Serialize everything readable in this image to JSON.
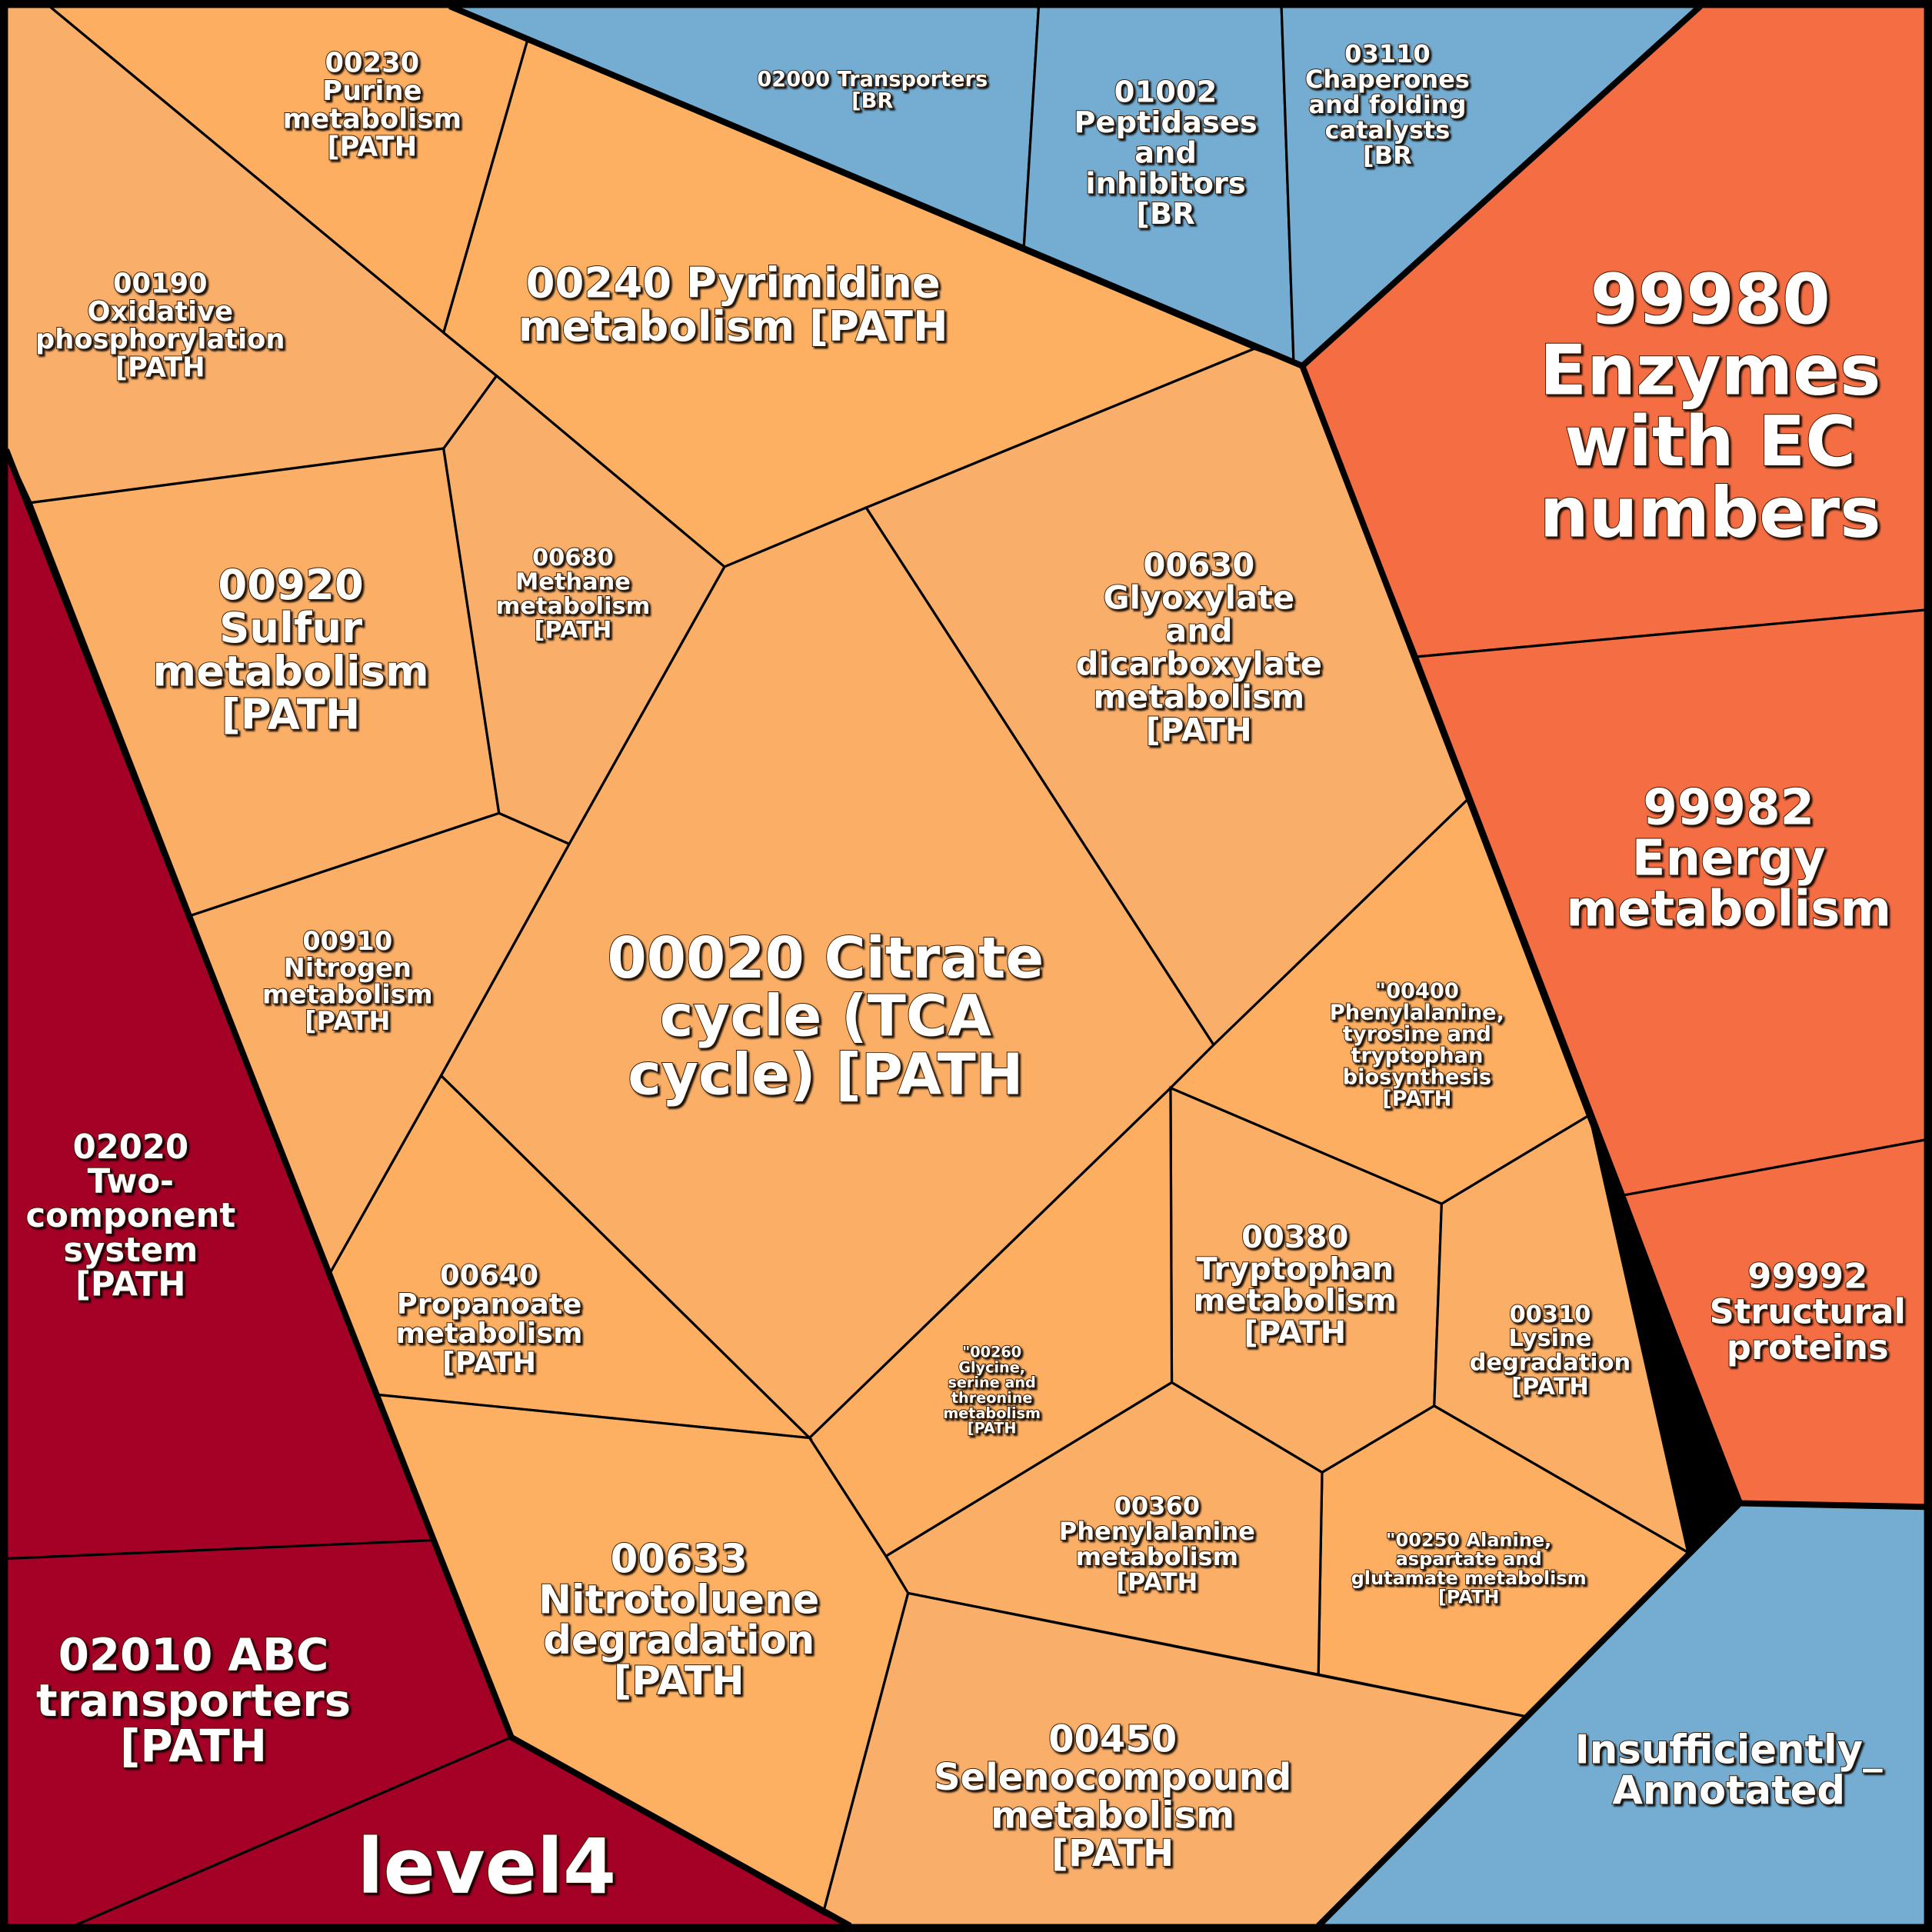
{
  "colors": {
    "orange": "#fdae61",
    "orange_alt": "#f9ae6a",
    "red": "#a50026",
    "orange_red": "#f46d43",
    "blue": "#74add1"
  },
  "chart_data": {
    "type": "voronoi-treemap",
    "title": "",
    "groups": [
      {
        "name": "level4",
        "color": "#a50026"
      },
      {
        "name": "BR",
        "color": "#74add1"
      },
      {
        "name": "99980 Enzymes with EC numbers",
        "color": "#f46d43"
      },
      {
        "name": "PATH",
        "color": "#fdae61"
      }
    ]
  },
  "cells": [
    {
      "lines": [
        "00230",
        "Purine",
        "metabolism",
        "[PATH"
      ]
    },
    {
      "lines": [
        "00190",
        "Oxidative",
        "phosphorylation",
        "[PATH"
      ]
    },
    {
      "lines": [
        "00240 Pyrimidine",
        "metabolism [PATH"
      ]
    },
    {
      "lines": [
        "02000 Transporters",
        "[BR"
      ]
    },
    {
      "lines": [
        "01002",
        "Peptidases",
        "and",
        "inhibitors",
        "[BR"
      ]
    },
    {
      "lines": [
        "03110",
        "Chaperones",
        "and folding",
        "catalysts",
        "[BR"
      ]
    },
    {
      "lines": [
        "99980",
        "Enzymes",
        "with EC",
        "numbers"
      ]
    },
    {
      "lines": [
        "99982",
        "Energy",
        "metabolism"
      ]
    },
    {
      "lines": [
        "99992",
        "Structural",
        "proteins"
      ]
    },
    {
      "lines": [
        "Insufficiently_",
        "Annotated"
      ]
    },
    {
      "lines": [
        "00920",
        "Sulfur",
        "metabolism",
        "[PATH"
      ]
    },
    {
      "lines": [
        "00680",
        "Methane",
        "metabolism",
        "[PATH"
      ]
    },
    {
      "lines": [
        "00630",
        "Glyoxylate",
        "and",
        "dicarboxylate",
        "metabolism",
        "[PATH"
      ]
    },
    {
      "lines": [
        "00020 Citrate",
        "cycle (TCA",
        "cycle) [PATH"
      ]
    },
    {
      "lines": [
        "00910",
        "Nitrogen",
        "metabolism",
        "[PATH"
      ]
    },
    {
      "lines": [
        "\"00400",
        "Phenylalanine,",
        "tyrosine and",
        "tryptophan",
        "biosynthesis",
        "[PATH"
      ]
    },
    {
      "lines": [
        "02020",
        "Two-",
        "component",
        "system",
        "[PATH"
      ]
    },
    {
      "lines": [
        "00640",
        "Propanoate",
        "metabolism",
        "[PATH"
      ]
    },
    {
      "lines": [
        "00380",
        "Tryptophan",
        "metabolism",
        "[PATH"
      ]
    },
    {
      "lines": [
        "\"00260",
        "Glycine,",
        "serine and",
        "threonine",
        "metabolism",
        "[PATH"
      ]
    },
    {
      "lines": [
        "00310",
        "Lysine",
        "degradation",
        "[PATH"
      ]
    },
    {
      "lines": [
        "00360",
        "Phenylalanine",
        "metabolism",
        "[PATH"
      ]
    },
    {
      "lines": [
        "\"00250 Alanine,",
        "aspartate and",
        "glutamate metabolism",
        "[PATH"
      ]
    },
    {
      "lines": [
        "02010 ABC",
        "transporters",
        "[PATH"
      ]
    },
    {
      "lines": [
        "00633",
        "Nitrotoluene",
        "degradation",
        "[PATH"
      ]
    },
    {
      "lines": [
        "00450",
        "Selenocompound",
        "metabolism",
        "[PATH"
      ]
    },
    {
      "lines": [
        "level4"
      ]
    }
  ]
}
